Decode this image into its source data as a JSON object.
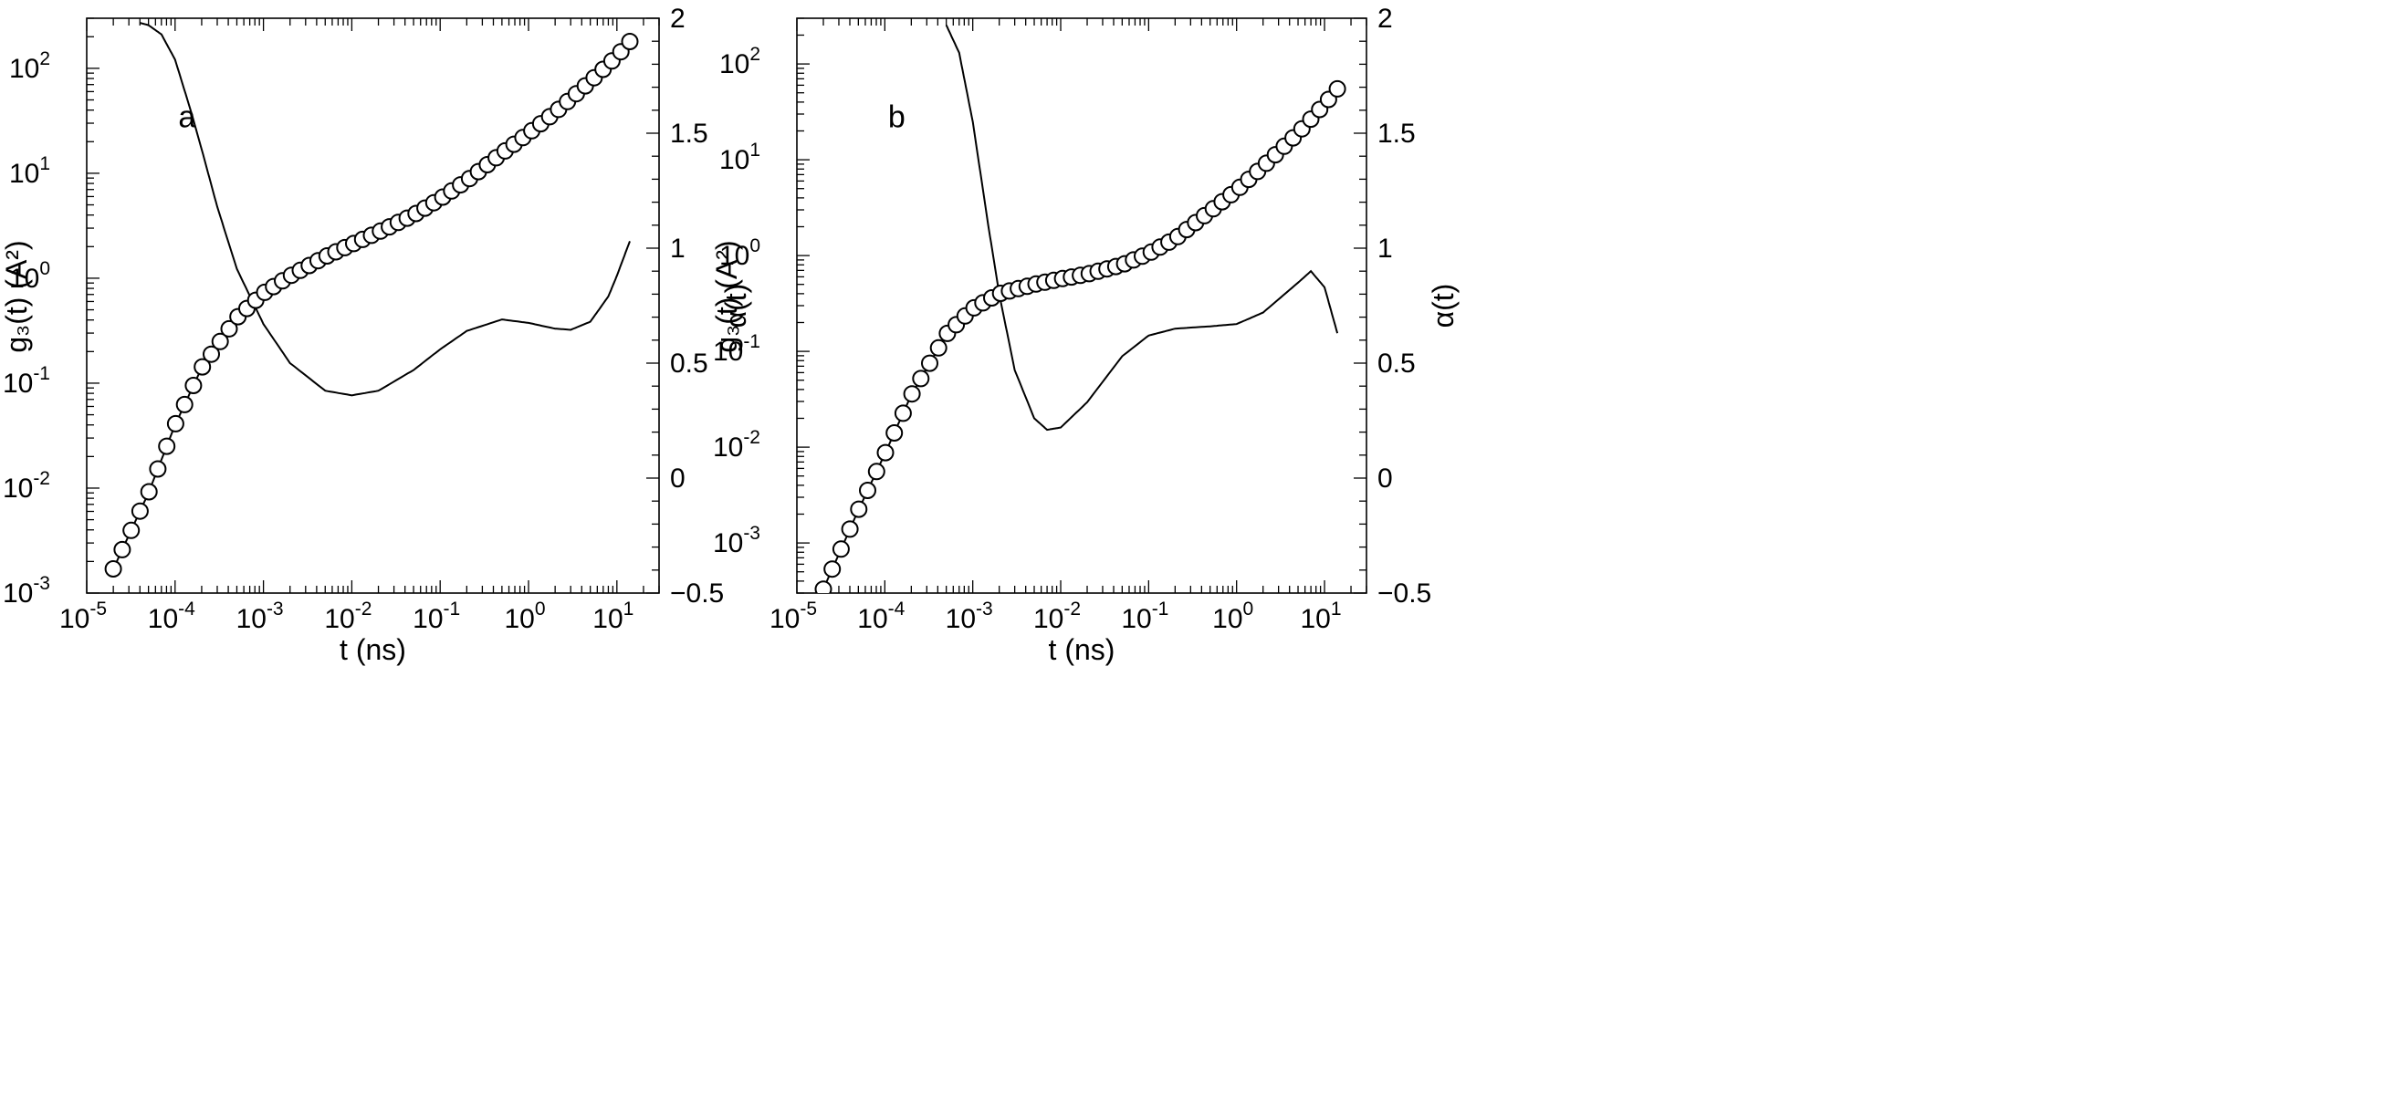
{
  "chart_data": [
    {
      "type": "scatter",
      "panel_label": "a",
      "xlabel": "t (ns)",
      "ylabel_left": "g₃(t) (A²)",
      "ylabel_right": "α(t)",
      "x_scale": "log",
      "y_left_scale": "log",
      "xlim": [
        1e-05,
        30
      ],
      "ylim_left": [
        0.001,
        300
      ],
      "ylim_right": [
        -0.5,
        2
      ],
      "x_ticks": [
        {
          "exp": "-5"
        },
        {
          "exp": "-4"
        },
        {
          "exp": "-3"
        },
        {
          "exp": "-2"
        },
        {
          "exp": "-1"
        },
        {
          "exp": "0"
        },
        {
          "exp": "1"
        }
      ],
      "y_left_ticks": [
        {
          "exp": "-3"
        },
        {
          "exp": "-2"
        },
        {
          "exp": "-1"
        },
        {
          "exp": "0"
        },
        {
          "exp": "1"
        },
        {
          "exp": "2"
        }
      ],
      "y_right_ticks": [
        {
          "value": -0.5,
          "label": "-0.5"
        },
        {
          "value": 0,
          "label": "0"
        },
        {
          "value": 0.5,
          "label": "0.5"
        },
        {
          "value": 1,
          "label": "1"
        },
        {
          "value": 1.5,
          "label": "1.5"
        },
        {
          "value": 2,
          "label": "2"
        }
      ],
      "msd_curve": [
        [
          2e-05,
          0.0017
        ],
        [
          5e-05,
          0.009
        ],
        [
          0.0001,
          0.04
        ],
        [
          0.0002,
          0.14
        ],
        [
          0.0005,
          0.42
        ],
        [
          0.001,
          0.72
        ],
        [
          0.002,
          1.05
        ],
        [
          0.005,
          1.6
        ],
        [
          0.01,
          2.1
        ],
        [
          0.02,
          2.75
        ],
        [
          0.05,
          4.0
        ],
        [
          0.1,
          5.7
        ],
        [
          0.2,
          8.5
        ],
        [
          0.5,
          15.5
        ],
        [
          1,
          24
        ],
        [
          2,
          38
        ],
        [
          5,
          75
        ],
        [
          10,
          130
        ],
        [
          14,
          180
        ]
      ],
      "alpha_curve": [
        [
          4e-05,
          1.98
        ],
        [
          5e-05,
          1.97
        ],
        [
          7e-05,
          1.93
        ],
        [
          0.0001,
          1.82
        ],
        [
          0.00015,
          1.6
        ],
        [
          0.0002,
          1.43
        ],
        [
          0.0003,
          1.18
        ],
        [
          0.0005,
          0.91
        ],
        [
          0.001,
          0.67
        ],
        [
          0.002,
          0.5
        ],
        [
          0.005,
          0.38
        ],
        [
          0.01,
          0.36
        ],
        [
          0.02,
          0.38
        ],
        [
          0.05,
          0.47
        ],
        [
          0.1,
          0.56
        ],
        [
          0.2,
          0.64
        ],
        [
          0.5,
          0.69
        ],
        [
          1,
          0.675
        ],
        [
          2,
          0.65
        ],
        [
          3,
          0.645
        ],
        [
          5,
          0.68
        ],
        [
          8,
          0.79
        ],
        [
          10,
          0.88
        ],
        [
          14,
          1.03
        ]
      ],
      "circle_range": [
        2e-05,
        14
      ]
    },
    {
      "type": "scatter",
      "panel_label": "b",
      "xlabel": "t (ns)",
      "ylabel_left": "g₃(t) (A²)",
      "ylabel_right": "α(t)",
      "x_scale": "log",
      "y_left_scale": "log",
      "xlim": [
        1e-05,
        30
      ],
      "ylim_left": [
        0.0003,
        300
      ],
      "ylim_right": [
        -0.5,
        2
      ],
      "x_ticks": [
        {
          "exp": "-5"
        },
        {
          "exp": "-4"
        },
        {
          "exp": "-3"
        },
        {
          "exp": "-2"
        },
        {
          "exp": "-1"
        },
        {
          "exp": "0"
        },
        {
          "exp": "1"
        }
      ],
      "y_left_ticks": [
        {
          "exp": "-3"
        },
        {
          "exp": "-2"
        },
        {
          "exp": "-1"
        },
        {
          "exp": "0"
        },
        {
          "exp": "1"
        },
        {
          "exp": "2"
        }
      ],
      "y_right_ticks": [
        {
          "value": -0.5,
          "label": "-0.5"
        },
        {
          "value": 0,
          "label": "0"
        },
        {
          "value": 0.5,
          "label": "0.5"
        },
        {
          "value": 1,
          "label": "1"
        },
        {
          "value": 1.5,
          "label": "1.5"
        },
        {
          "value": 2,
          "label": "2"
        }
      ],
      "msd_curve": [
        [
          2e-05,
          0.00033
        ],
        [
          5e-05,
          0.0022
        ],
        [
          0.0001,
          0.0085
        ],
        [
          0.0002,
          0.035
        ],
        [
          0.0005,
          0.15
        ],
        [
          0.001,
          0.28
        ],
        [
          0.002,
          0.4
        ],
        [
          0.005,
          0.5
        ],
        [
          0.01,
          0.57
        ],
        [
          0.02,
          0.64
        ],
        [
          0.05,
          0.8
        ],
        [
          0.1,
          1.05
        ],
        [
          0.2,
          1.5
        ],
        [
          0.5,
          2.9
        ],
        [
          1,
          4.8
        ],
        [
          2,
          8.5
        ],
        [
          5,
          19
        ],
        [
          10,
          38
        ],
        [
          14,
          55
        ]
      ],
      "alpha_curve": [
        [
          0.0005,
          1.97
        ],
        [
          0.0007,
          1.85
        ],
        [
          0.001,
          1.55
        ],
        [
          0.0015,
          1.1
        ],
        [
          0.002,
          0.8
        ],
        [
          0.003,
          0.47
        ],
        [
          0.005,
          0.26
        ],
        [
          0.007,
          0.21
        ],
        [
          0.01,
          0.22
        ],
        [
          0.02,
          0.33
        ],
        [
          0.05,
          0.53
        ],
        [
          0.1,
          0.62
        ],
        [
          0.2,
          0.65
        ],
        [
          0.5,
          0.66
        ],
        [
          1,
          0.67
        ],
        [
          2,
          0.72
        ],
        [
          5,
          0.85
        ],
        [
          7,
          0.9
        ],
        [
          10,
          0.83
        ],
        [
          14,
          0.63
        ]
      ],
      "circle_range": [
        2e-05,
        14
      ]
    }
  ]
}
